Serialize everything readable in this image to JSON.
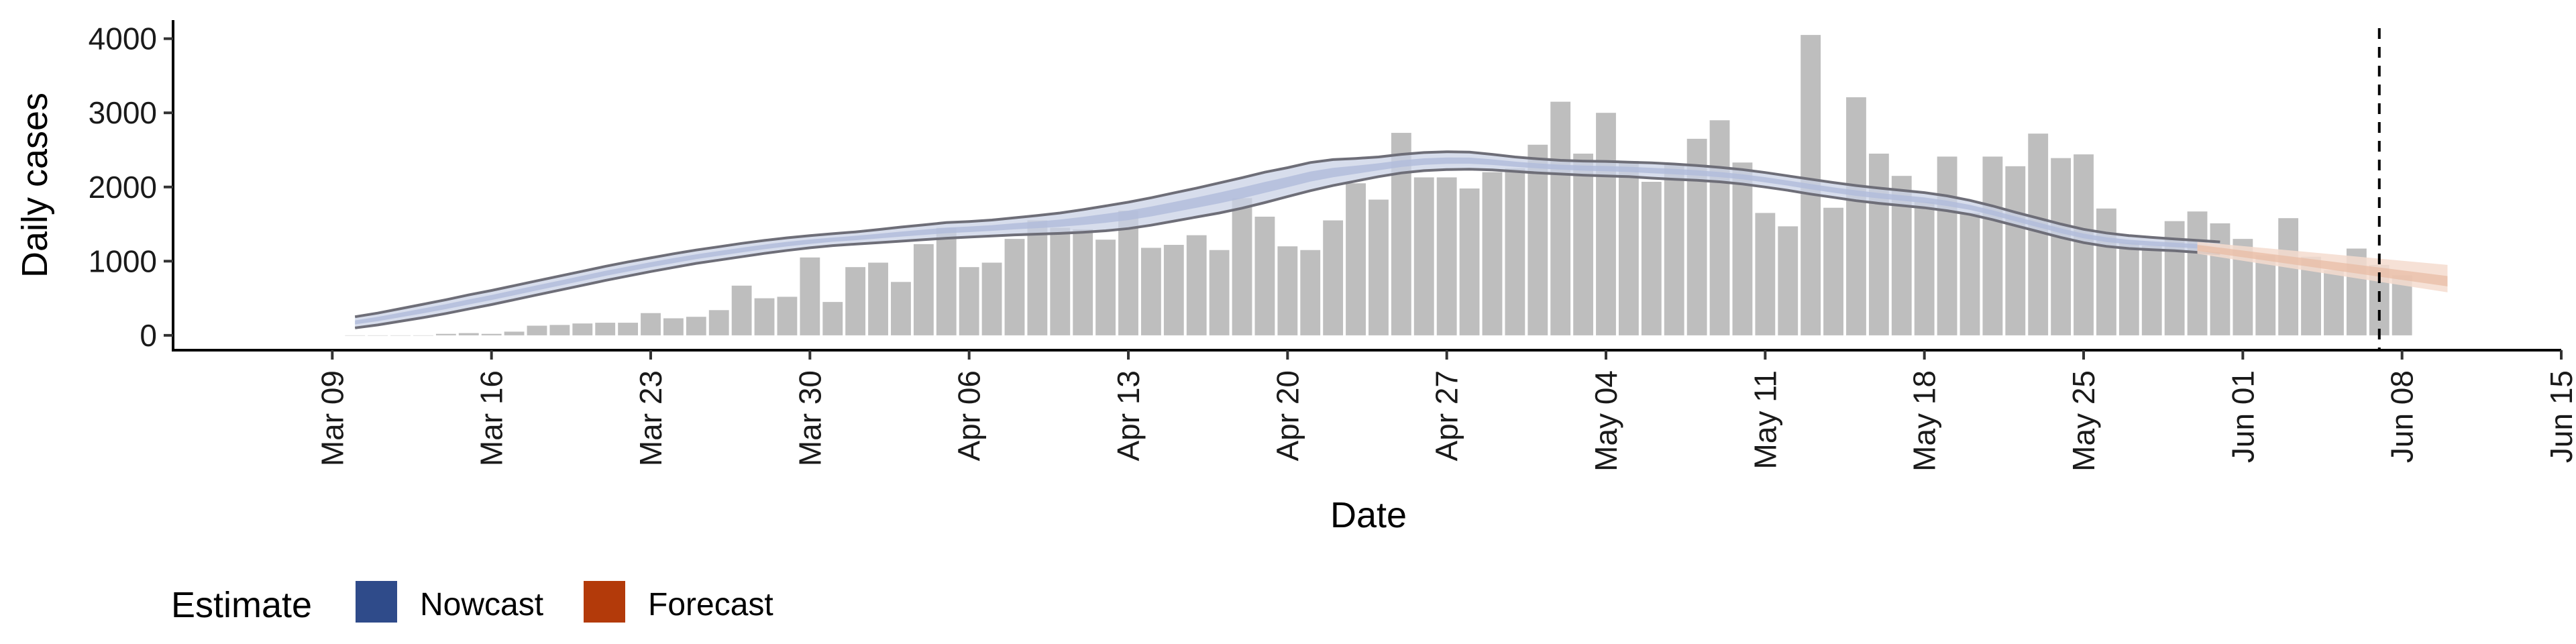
{
  "chart_data": {
    "type": "bar",
    "title": "",
    "xlabel": "Date",
    "ylabel": "Daily cases",
    "ylim": [
      -200,
      4250
    ],
    "y_ticks": [
      "0",
      "1000",
      "2000",
      "3000",
      "4000"
    ],
    "y_tick_values": [
      0,
      1000,
      2000,
      3000,
      4000
    ],
    "x_ticks": [
      "Mar 09",
      "Mar 16",
      "Mar 23",
      "Mar 30",
      "Apr 06",
      "Apr 13",
      "Apr 20",
      "Apr 27",
      "May 04",
      "May 11",
      "May 18",
      "May 25",
      "Jun 01",
      "Jun 08",
      "Jun 15"
    ],
    "x_tick_dates": [
      "2020-03-09",
      "2020-03-16",
      "2020-03-23",
      "2020-03-30",
      "2020-04-06",
      "2020-04-13",
      "2020-04-20",
      "2020-04-27",
      "2020-05-04",
      "2020-05-11",
      "2020-05-18",
      "2020-05-25",
      "2020-06-01",
      "2020-06-08",
      "2020-06-15"
    ],
    "xlim": [
      "2020-03-02",
      "2020-06-15"
    ],
    "grid": false,
    "cases": {
      "start_date": "2020-03-10",
      "values": [
        0,
        0,
        0,
        0,
        20,
        30,
        20,
        50,
        130,
        140,
        160,
        170,
        170,
        300,
        230,
        250,
        340,
        670,
        500,
        520,
        1050,
        450,
        920,
        980,
        720,
        1230,
        1450,
        920,
        980,
        1300,
        1550,
        1450,
        1430,
        1290,
        1680,
        1180,
        1220,
        1350,
        1150,
        1850,
        1600,
        1200,
        1150,
        1550,
        2050,
        1830,
        2730,
        2130,
        2130,
        1980,
        2200,
        2250,
        2570,
        3150,
        2450,
        3000,
        2350,
        2070,
        2300,
        2650,
        2900,
        2330,
        1650,
        1470,
        4050,
        1720,
        3210,
        2450,
        2150,
        1800,
        2410,
        1650,
        2410,
        2280,
        2720,
        2390,
        2440,
        1710,
        1250,
        1210,
        1540,
        1670,
        1510,
        1300,
        1080,
        1580,
        1060,
        880,
        1170,
        950,
        810
      ]
    },
    "nowcast": {
      "name": "Nowcast",
      "start_date": "2020-03-10",
      "lower": [
        100,
        140,
        190,
        240,
        295,
        355,
        415,
        480,
        545,
        610,
        675,
        740,
        800,
        860,
        915,
        970,
        1015,
        1060,
        1105,
        1145,
        1180,
        1210,
        1230,
        1250,
        1270,
        1290,
        1310,
        1325,
        1340,
        1355,
        1365,
        1375,
        1390,
        1410,
        1440,
        1485,
        1540,
        1595,
        1650,
        1715,
        1790,
        1870,
        1950,
        2020,
        2080,
        2140,
        2190,
        2220,
        2235,
        2240,
        2230,
        2210,
        2190,
        2175,
        2160,
        2150,
        2140,
        2120,
        2105,
        2090,
        2070,
        2040,
        2000,
        1955,
        1905,
        1860,
        1815,
        1780,
        1750,
        1720,
        1680,
        1630,
        1560,
        1480,
        1400,
        1320,
        1250,
        1200,
        1170,
        1155,
        1140,
        1120,
        1100
      ],
      "upper": [
        250,
        300,
        360,
        420,
        480,
        545,
        605,
        670,
        735,
        800,
        865,
        930,
        990,
        1045,
        1100,
        1150,
        1195,
        1240,
        1280,
        1315,
        1345,
        1370,
        1395,
        1425,
        1460,
        1490,
        1520,
        1535,
        1555,
        1585,
        1615,
        1650,
        1695,
        1745,
        1795,
        1855,
        1920,
        1985,
        2055,
        2125,
        2200,
        2260,
        2330,
        2370,
        2385,
        2405,
        2440,
        2465,
        2475,
        2470,
        2440,
        2405,
        2380,
        2360,
        2350,
        2345,
        2335,
        2325,
        2310,
        2290,
        2265,
        2235,
        2195,
        2150,
        2105,
        2060,
        2020,
        1985,
        1955,
        1925,
        1880,
        1820,
        1745,
        1660,
        1580,
        1500,
        1430,
        1380,
        1345,
        1320,
        1300,
        1280,
        1260
      ]
    },
    "forecast": {
      "name": "Forecast",
      "start_date": "2020-05-30",
      "mid_start": 1180,
      "mid_end": 720,
      "inner_low_start": 1140,
      "inner_high_start": 1220,
      "inner_low_end": 660,
      "inner_high_end": 800,
      "outer_low_start": 1100,
      "outer_high_start": 1260,
      "outer_low_end": 580,
      "outer_high_end": 950,
      "end_date": "2020-06-10"
    },
    "vline_date": "2020-06-07",
    "legend": {
      "title": "Estimate",
      "placement": "bottom-left",
      "entries": [
        {
          "label": "Nowcast",
          "color": "#2f4b8a"
        },
        {
          "label": "Forecast",
          "color": "#b33a0a"
        }
      ]
    },
    "colors": {
      "bars": "#bebebe",
      "nowcast_band": "#c9d1e6",
      "nowcast_core": "#b0bcdb",
      "nowcast_outline": "#6e6e78",
      "forecast_outer": "#f4dccf",
      "forecast_inner": "#e8bba3",
      "vline": "#000000"
    }
  }
}
